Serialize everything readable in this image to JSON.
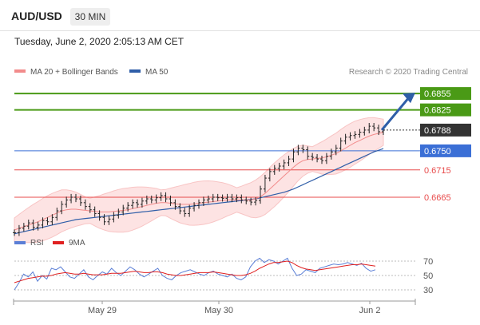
{
  "header": {
    "symbol": "AUD/USD",
    "timeframe": "30 MIN",
    "timestamp": "Tuesday, June 2, 2020 2:05:13 AM CET"
  },
  "legend": [
    {
      "label": "MA 20 + Bollinger Bands",
      "color": "#f28b8b"
    },
    {
      "label": "MA 50",
      "color": "#2f5ea8"
    }
  ],
  "credit": "Research © 2020 Trading Central",
  "chart_data": {
    "type": "line",
    "price_range": [
      0.6605,
      0.688
    ],
    "x_ticks": [
      "May 29",
      "May 30",
      "Jun 2"
    ],
    "levels": [
      {
        "value": 0.6855,
        "label": "0.6855",
        "kind": "target",
        "color": "#4a9a16"
      },
      {
        "value": 0.6825,
        "label": "0.6825",
        "kind": "target",
        "color": "#4a9a16"
      },
      {
        "value": 0.6788,
        "label": "0.6788",
        "kind": "last-price",
        "color": "#333333"
      },
      {
        "value": 0.675,
        "label": "0.6750",
        "kind": "pivot",
        "color": "#3b6fd6"
      },
      {
        "value": 0.6715,
        "label": "0.6715",
        "kind": "support",
        "color": "#e84b4b"
      },
      {
        "value": 0.6665,
        "label": "0.6665",
        "kind": "support",
        "color": "#e84b4b"
      }
    ],
    "price_series": [
      0.66,
      0.6608,
      0.6612,
      0.6618,
      0.661,
      0.6614,
      0.6622,
      0.662,
      0.6628,
      0.664,
      0.6652,
      0.666,
      0.6665,
      0.6662,
      0.6655,
      0.6648,
      0.6642,
      0.6635,
      0.6628,
      0.662,
      0.6625,
      0.6632,
      0.6638,
      0.6645,
      0.665,
      0.6655,
      0.6652,
      0.6658,
      0.6662,
      0.666,
      0.6664,
      0.6668,
      0.6662,
      0.6655,
      0.6648,
      0.664,
      0.6635,
      0.6645,
      0.665,
      0.6655,
      0.666,
      0.6662,
      0.6665,
      0.6664,
      0.6663,
      0.6665,
      0.6662,
      0.6664,
      0.666,
      0.6658,
      0.6656,
      0.6659,
      0.668,
      0.67,
      0.6712,
      0.6718,
      0.6722,
      0.6728,
      0.6735,
      0.6748,
      0.6755,
      0.6752,
      0.674,
      0.6738,
      0.6735,
      0.6732,
      0.674,
      0.6748,
      0.6755,
      0.6768,
      0.6775,
      0.6778,
      0.678,
      0.6784,
      0.6788,
      0.6795,
      0.6792,
      0.6785,
      0.6788
    ],
    "ma20": [
      0.6605,
      0.6608,
      0.6611,
      0.6614,
      0.6617,
      0.662,
      0.6624,
      0.6628,
      0.6632,
      0.6636,
      0.664,
      0.6642,
      0.6643,
      0.6643,
      0.6642,
      0.6641,
      0.664,
      0.6639,
      0.6638,
      0.6638,
      0.6638,
      0.6639,
      0.664,
      0.6641,
      0.6642,
      0.6644,
      0.6646,
      0.6648,
      0.665,
      0.6652,
      0.6654,
      0.6655,
      0.6655,
      0.6654,
      0.6653,
      0.6652,
      0.6652,
      0.6652,
      0.6653,
      0.6654,
      0.6655,
      0.6656,
      0.6657,
      0.6658,
      0.6659,
      0.666,
      0.666,
      0.666,
      0.666,
      0.666,
      0.666,
      0.6662,
      0.6666,
      0.6672,
      0.668,
      0.6688,
      0.6696,
      0.6704,
      0.6712,
      0.672,
      0.6727,
      0.6732,
      0.6734,
      0.6735,
      0.6736,
      0.6737,
      0.6739,
      0.6742,
      0.6745,
      0.675,
      0.6755,
      0.676,
      0.6765,
      0.6769,
      0.6773,
      0.6777,
      0.678,
      0.6782,
      0.6784
    ],
    "ma50": [
      0.6598,
      0.66,
      0.6602,
      0.6604,
      0.6606,
      0.6608,
      0.661,
      0.6612,
      0.6614,
      0.6616,
      0.6618,
      0.662,
      0.6622,
      0.6624,
      0.6625,
      0.6626,
      0.6627,
      0.6628,
      0.6629,
      0.663,
      0.6631,
      0.6632,
      0.6633,
      0.6634,
      0.6635,
      0.6636,
      0.6637,
      0.6638,
      0.6639,
      0.664,
      0.6641,
      0.6642,
      0.6643,
      0.6644,
      0.6645,
      0.6646,
      0.6647,
      0.6648,
      0.6649,
      0.665,
      0.6651,
      0.6652,
      0.6653,
      0.6654,
      0.6655,
      0.6656,
      0.6657,
      0.6658,
      0.6659,
      0.666,
      0.6661,
      0.6662,
      0.6664,
      0.6666,
      0.6668,
      0.667,
      0.6672,
      0.6674,
      0.6677,
      0.668,
      0.6684,
      0.6688,
      0.6692,
      0.6696,
      0.67,
      0.6704,
      0.6708,
      0.6712,
      0.6716,
      0.672,
      0.6724,
      0.6728,
      0.6732,
      0.6736,
      0.674,
      0.6744,
      0.6748,
      0.6751,
      0.6754
    ],
    "rsi_panel": {
      "legend": [
        {
          "label": "RSI",
          "color": "#5b7fd6"
        },
        {
          "label": "9MA",
          "color": "#e02020"
        }
      ],
      "ticks": [
        70,
        50,
        30
      ],
      "range": [
        20,
        80
      ],
      "rsi": [
        30,
        40,
        52,
        48,
        55,
        42,
        50,
        45,
        60,
        58,
        62,
        55,
        48,
        46,
        52,
        58,
        48,
        44,
        50,
        55,
        52,
        60,
        54,
        50,
        56,
        62,
        58,
        52,
        48,
        52,
        56,
        60,
        50,
        46,
        44,
        50,
        54,
        56,
        58,
        55,
        52,
        50,
        54,
        56,
        52,
        50,
        48,
        52,
        46,
        44,
        48,
        62,
        70,
        74,
        68,
        72,
        70,
        66,
        70,
        74,
        60,
        50,
        52,
        58,
        56,
        54,
        60,
        62,
        64,
        66,
        65,
        66,
        68,
        66,
        64,
        67,
        60,
        56,
        58
      ],
      "ma9": [
        40,
        42,
        44,
        46,
        47,
        48,
        49,
        49,
        50,
        52,
        53,
        54,
        53,
        52,
        52,
        53,
        52,
        51,
        51,
        51,
        52,
        53,
        53,
        53,
        54,
        55,
        56,
        55,
        54,
        54,
        55,
        55,
        54,
        52,
        51,
        50,
        50,
        51,
        52,
        53,
        54,
        54,
        54,
        55,
        54,
        53,
        52,
        51,
        50,
        50,
        51,
        53,
        56,
        60,
        63,
        66,
        68,
        68,
        69,
        70,
        68,
        64,
        61,
        59,
        58,
        57,
        58,
        59,
        60,
        61,
        62,
        63,
        64,
        65,
        65,
        66,
        65,
        64,
        63
      ]
    }
  }
}
